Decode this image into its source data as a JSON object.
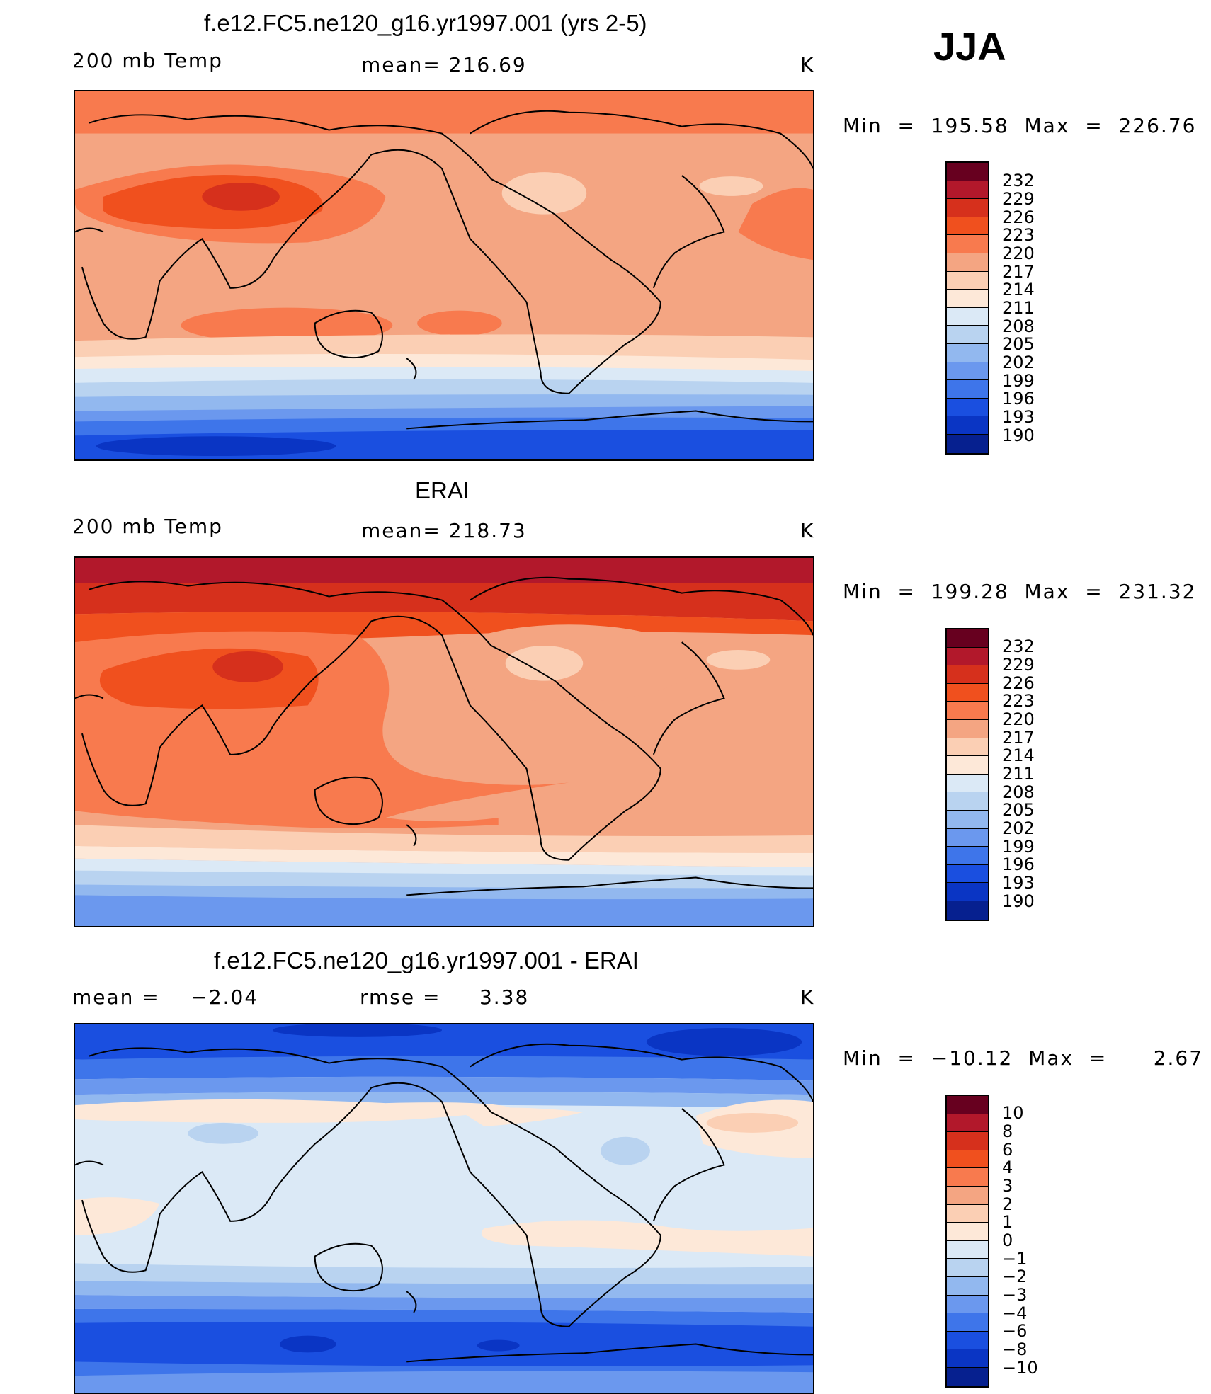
{
  "season": "JJA",
  "colors": {
    "scale": [
      "#67001f",
      "#b2182b",
      "#d6301c",
      "#f0501e",
      "#f87a4e",
      "#f4a582",
      "#fbcfb4",
      "#fde8d8",
      "#dbe9f6",
      "#b9d3f0",
      "#92b8ef",
      "#6b98ee",
      "#3e75ea",
      "#1a4fe0",
      "#0a35c4",
      "#06208f"
    ]
  },
  "chart_data": [
    {
      "type": "heatmap",
      "name": "model",
      "title": "f.e12.FC5.ne120_g16.yr1997.001 (yrs 2-5)",
      "left_label": "200 mb Temp",
      "center_label": "mean= 216.69",
      "units": "K",
      "stats": "Min  =  195.58  Max  =  226.76",
      "min": 195.58,
      "max": 226.76,
      "mean": 216.69,
      "colorbar_labels": [
        "232",
        "229",
        "226",
        "223",
        "220",
        "217",
        "214",
        "211",
        "208",
        "205",
        "202",
        "199",
        "196",
        "193",
        "190"
      ]
    },
    {
      "type": "heatmap",
      "name": "obs",
      "title": "ERAI",
      "left_label": "200 mb Temp",
      "center_label": "mean= 218.73",
      "units": "K",
      "stats": "Min  =  199.28  Max  =  231.32",
      "min": 199.28,
      "max": 231.32,
      "mean": 218.73,
      "colorbar_labels": [
        "232",
        "229",
        "226",
        "223",
        "220",
        "217",
        "214",
        "211",
        "208",
        "205",
        "202",
        "199",
        "196",
        "193",
        "190"
      ]
    },
    {
      "type": "heatmap",
      "name": "difference",
      "title": "f.e12.FC5.ne120_g16.yr1997.001 - ERAI",
      "left_label": "mean =    −2.04",
      "center_label": "rmse =     3.38",
      "units": "K",
      "stats": "Min  =  −10.12  Max  =      2.67",
      "min": -10.12,
      "max": 2.67,
      "mean": -2.04,
      "rmse": 3.38,
      "colorbar_labels": [
        "10",
        "8",
        "6",
        "4",
        "3",
        "2",
        "1",
        "0",
        "−1",
        "−2",
        "−3",
        "−4",
        "−6",
        "−8",
        "−10"
      ]
    }
  ]
}
